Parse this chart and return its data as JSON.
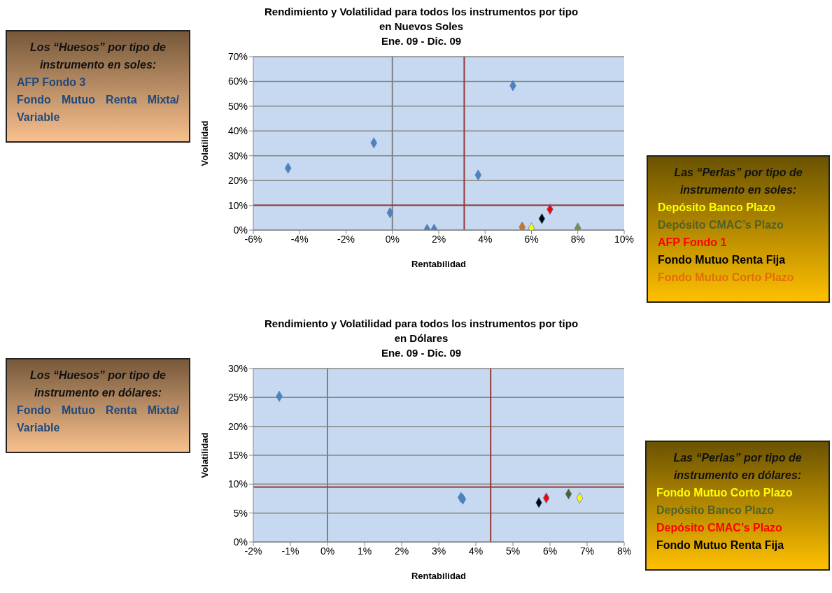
{
  "chart_data": [
    {
      "type": "other",
      "title": "Los “Huesos” por tipo de instrumento en soles:",
      "annotations": [
        "AFP Fondo 3",
        "Fondo Mutuo Renta Mixta/ Variable"
      ],
      "colors": [
        "#1f497d",
        "#1f497d"
      ]
    },
    {
      "type": "scatter",
      "title": "Rendimiento y Volatilidad para todos los instrumentos por tipo en Nuevos Soles",
      "subtitle": "Ene. 09 - Dic. 09",
      "xlabel": "Rentabilidad",
      "ylabel": "Volatilidad",
      "marker": "diamond",
      "grid": "y",
      "xlim": [
        -6,
        10
      ],
      "xticks": [
        {
          "value": -6,
          "label": "-6%"
        },
        {
          "value": -4,
          "label": "-4%"
        },
        {
          "value": -2,
          "label": "-2%"
        },
        {
          "value": 0,
          "label": "0%"
        },
        {
          "value": 2,
          "label": "2%"
        },
        {
          "value": 4,
          "label": "4%"
        },
        {
          "value": 6,
          "label": "6%"
        },
        {
          "value": 8,
          "label": "8%"
        },
        {
          "value": 10,
          "label": "10%"
        }
      ],
      "ylim": [
        0,
        70
      ],
      "yticks": [
        {
          "value": 0,
          "label": "0%"
        },
        {
          "value": 10,
          "label": "10%"
        },
        {
          "value": 20,
          "label": "20%"
        },
        {
          "value": 30,
          "label": "30%"
        },
        {
          "value": 40,
          "label": "40%"
        },
        {
          "value": 50,
          "label": "50%"
        },
        {
          "value": 60,
          "label": "60%"
        },
        {
          "value": 70,
          "label": "70%"
        }
      ],
      "series": [
        {
          "color": "#4f81bd",
          "x": [
            -4.5,
            -0.8,
            -0.1,
            1.5,
            1.8,
            3.7,
            5.2
          ],
          "values": [
            25,
            35.2,
            7,
            0.3,
            0.3,
            22.2,
            58.3
          ]
        },
        {
          "color": "#e46c0a",
          "x": [
            5.6
          ],
          "values": [
            1.2
          ]
        },
        {
          "color": "#ffff00",
          "x": [
            6.0
          ],
          "values": [
            0.8
          ]
        },
        {
          "color": "#000000",
          "x": [
            6.45
          ],
          "values": [
            4.6
          ]
        },
        {
          "color": "#ff0000",
          "x": [
            6.8
          ],
          "values": [
            8.4
          ]
        },
        {
          "color": "#76923c",
          "x": [
            8.0
          ],
          "values": [
            0.8
          ]
        }
      ],
      "ref_lines": [
        {
          "axis": "x",
          "value": 0,
          "color": "#808080"
        },
        {
          "axis": "x",
          "value": 3.1,
          "color": "#953735"
        },
        {
          "axis": "y",
          "value": 10,
          "color": "#953735"
        }
      ]
    },
    {
      "type": "other",
      "title": "Las “Perlas” por tipo de instrumento en soles:",
      "annotations": [
        "Depósito Banco Plazo",
        "Depósito CMAC’s Plazo",
        "AFP Fondo 1",
        "Fondo Mutuo Renta Fija",
        "Fondo Mutuo Corto Plazo"
      ],
      "colors": [
        "#ffff00",
        "#4f6228",
        "#ff0000",
        "#000000",
        "#e46c0a"
      ]
    },
    {
      "type": "other",
      "title": "Los “Huesos” por tipo de instrumento en dólares:",
      "annotations": [
        "Fondo Mutuo Renta Mixta/ Variable"
      ],
      "colors": [
        "#1f497d"
      ]
    },
    {
      "type": "scatter",
      "title": "Rendimiento y Volatilidad para todos los instrumentos por tipo en Dólares",
      "subtitle": "Ene. 09 - Dic. 09",
      "xlabel": "Rentabilidad",
      "ylabel": "Volatilidad",
      "marker": "diamond",
      "grid": "y",
      "xlim": [
        -2,
        8
      ],
      "xticks": [
        {
          "value": -2,
          "label": "-2%"
        },
        {
          "value": -1,
          "label": "-1%"
        },
        {
          "value": 0,
          "label": "0%"
        },
        {
          "value": 1,
          "label": "1%"
        },
        {
          "value": 2,
          "label": "2%"
        },
        {
          "value": 3,
          "label": "3%"
        },
        {
          "value": 4,
          "label": "4%"
        },
        {
          "value": 5,
          "label": "5%"
        },
        {
          "value": 6,
          "label": "6%"
        },
        {
          "value": 7,
          "label": "7%"
        },
        {
          "value": 8,
          "label": "8%"
        }
      ],
      "ylim": [
        0,
        30
      ],
      "yticks": [
        {
          "value": 0,
          "label": "0%"
        },
        {
          "value": 5,
          "label": "5%"
        },
        {
          "value": 10,
          "label": "10%"
        },
        {
          "value": 15,
          "label": "15%"
        },
        {
          "value": 20,
          "label": "20%"
        },
        {
          "value": 25,
          "label": "25%"
        },
        {
          "value": 30,
          "label": "30%"
        }
      ],
      "series": [
        {
          "color": "#4f81bd",
          "x": [
            -1.3,
            3.6,
            3.65
          ],
          "values": [
            25.2,
            7.7,
            7.4
          ]
        },
        {
          "color": "#000000",
          "x": [
            5.7
          ],
          "values": [
            6.8
          ]
        },
        {
          "color": "#ff0000",
          "x": [
            5.9
          ],
          "values": [
            7.6
          ]
        },
        {
          "color": "#4f6228",
          "x": [
            6.5
          ],
          "values": [
            8.3
          ]
        },
        {
          "color": "#ffff00",
          "x": [
            6.8
          ],
          "values": [
            7.6
          ]
        }
      ],
      "ref_lines": [
        {
          "axis": "x",
          "value": 0,
          "color": "#808080"
        },
        {
          "axis": "x",
          "value": 4.4,
          "color": "#953735"
        },
        {
          "axis": "y",
          "value": 9.5,
          "color": "#953735"
        }
      ]
    },
    {
      "type": "other",
      "title": "Las “Perlas” por tipo de instrumento en dólares:",
      "annotations": [
        "Fondo Mutuo Corto Plazo",
        "Depósito Banco Plazo",
        "Depósito CMAC’s Plazo",
        "Fondo Mutuo Renta Fija"
      ],
      "colors": [
        "#ffff00",
        "#4f6228",
        "#ff0000",
        "#000000"
      ]
    }
  ]
}
